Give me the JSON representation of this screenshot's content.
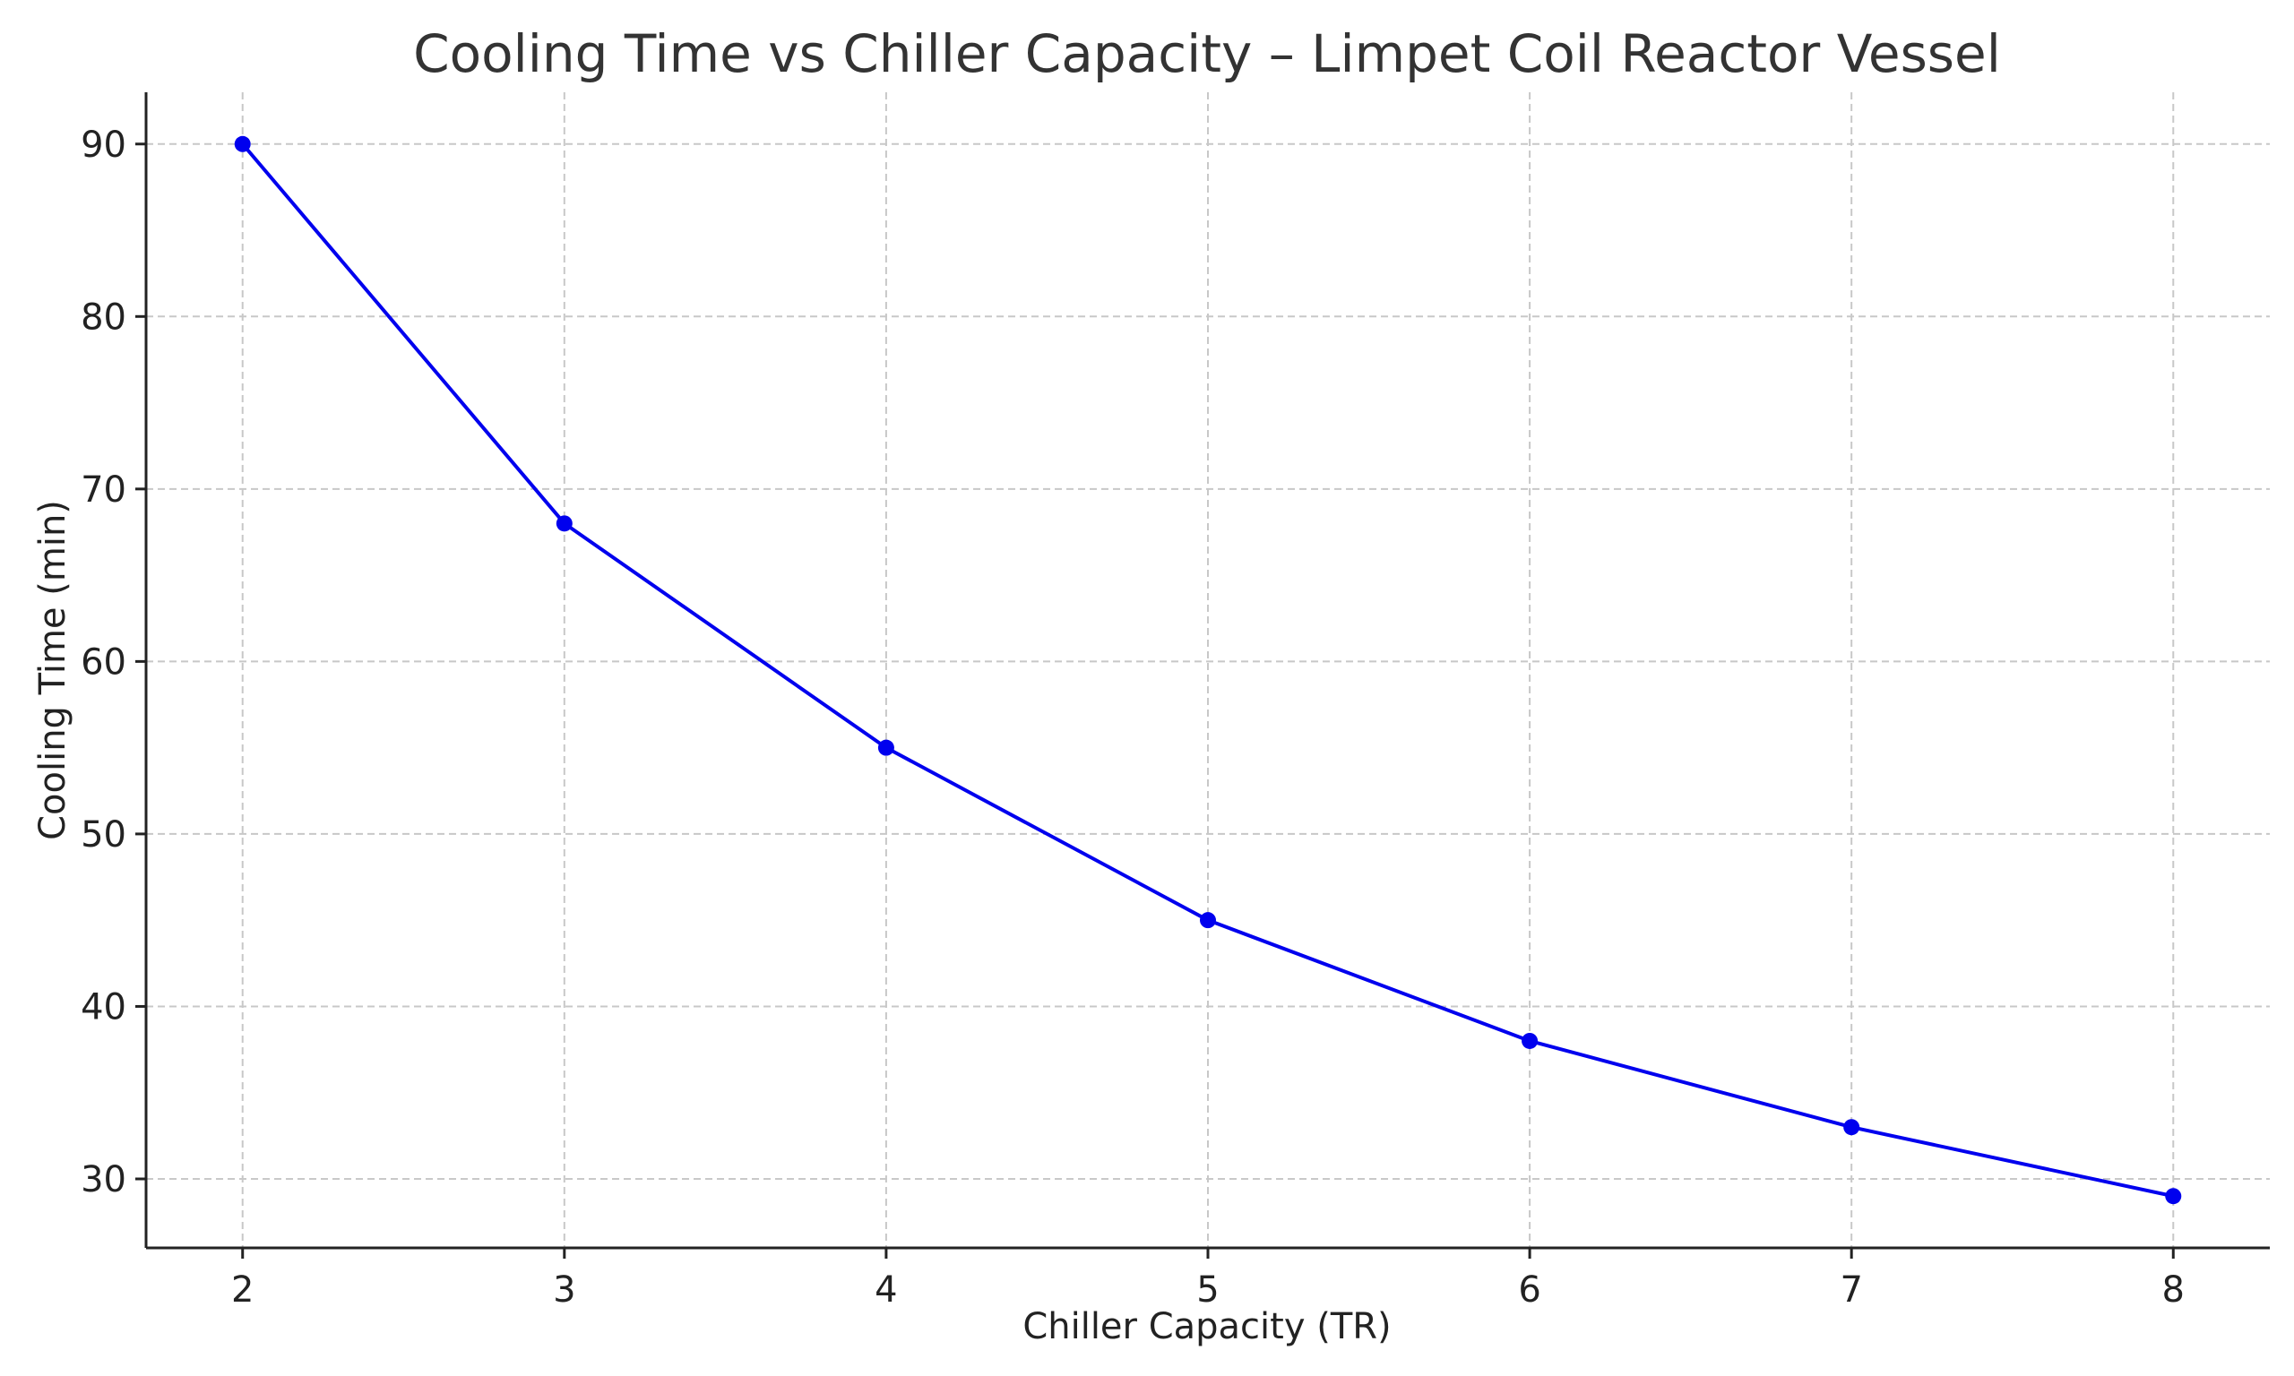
{
  "chart_data": {
    "type": "line",
    "title": "Cooling Time vs Chiller Capacity – Limpet Coil Reactor Vessel",
    "xlabel": "Chiller Capacity (TR)",
    "ylabel": "Cooling Time (min)",
    "x": [
      2,
      3,
      4,
      5,
      6,
      7,
      8
    ],
    "series": [
      {
        "values": [
          90,
          68,
          55,
          45,
          38,
          33,
          29
        ],
        "color": "#0000ee",
        "marker": "circle"
      }
    ],
    "xlim": [
      1.7,
      8.3
    ],
    "ylim": [
      26,
      93
    ],
    "x_ticks": [
      2,
      3,
      4,
      5,
      6,
      7,
      8
    ],
    "y_ticks": [
      30,
      40,
      50,
      60,
      70,
      80,
      90
    ],
    "grid": true,
    "legend": "none"
  }
}
